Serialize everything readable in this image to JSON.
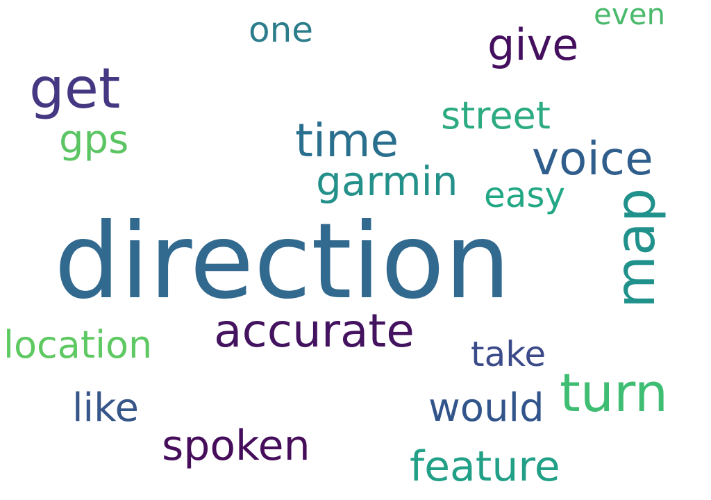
{
  "words": {
    "direction": {
      "text": "direction",
      "color": "#32698e"
    },
    "get": {
      "text": "get",
      "color": "#453781"
    },
    "give": {
      "text": "give",
      "color": "#440f5e"
    },
    "one": {
      "text": "one",
      "color": "#2c7d8c"
    },
    "even": {
      "text": "even",
      "color": "#49b96b"
    },
    "street": {
      "text": "street",
      "color": "#2caa82"
    },
    "gps": {
      "text": "gps",
      "color": "#5cc563"
    },
    "time": {
      "text": "time",
      "color": "#2a708e"
    },
    "voice": {
      "text": "voice",
      "color": "#2f5d8c"
    },
    "garmin": {
      "text": "garmin",
      "color": "#23918a"
    },
    "easy": {
      "text": "easy",
      "color": "#22a785"
    },
    "map": {
      "text": "map",
      "color": "#21918c"
    },
    "accurate": {
      "text": "accurate",
      "color": "#44135f"
    },
    "location": {
      "text": "location",
      "color": "#5ec962"
    },
    "take": {
      "text": "take",
      "color": "#3b4a89"
    },
    "turn": {
      "text": "turn",
      "color": "#3fbd73"
    },
    "like": {
      "text": "like",
      "color": "#365588"
    },
    "would": {
      "text": "would",
      "color": "#31548b"
    },
    "spoken": {
      "text": "spoken",
      "color": "#460d5b"
    },
    "feature": {
      "text": "feature",
      "color": "#22a087"
    }
  }
}
